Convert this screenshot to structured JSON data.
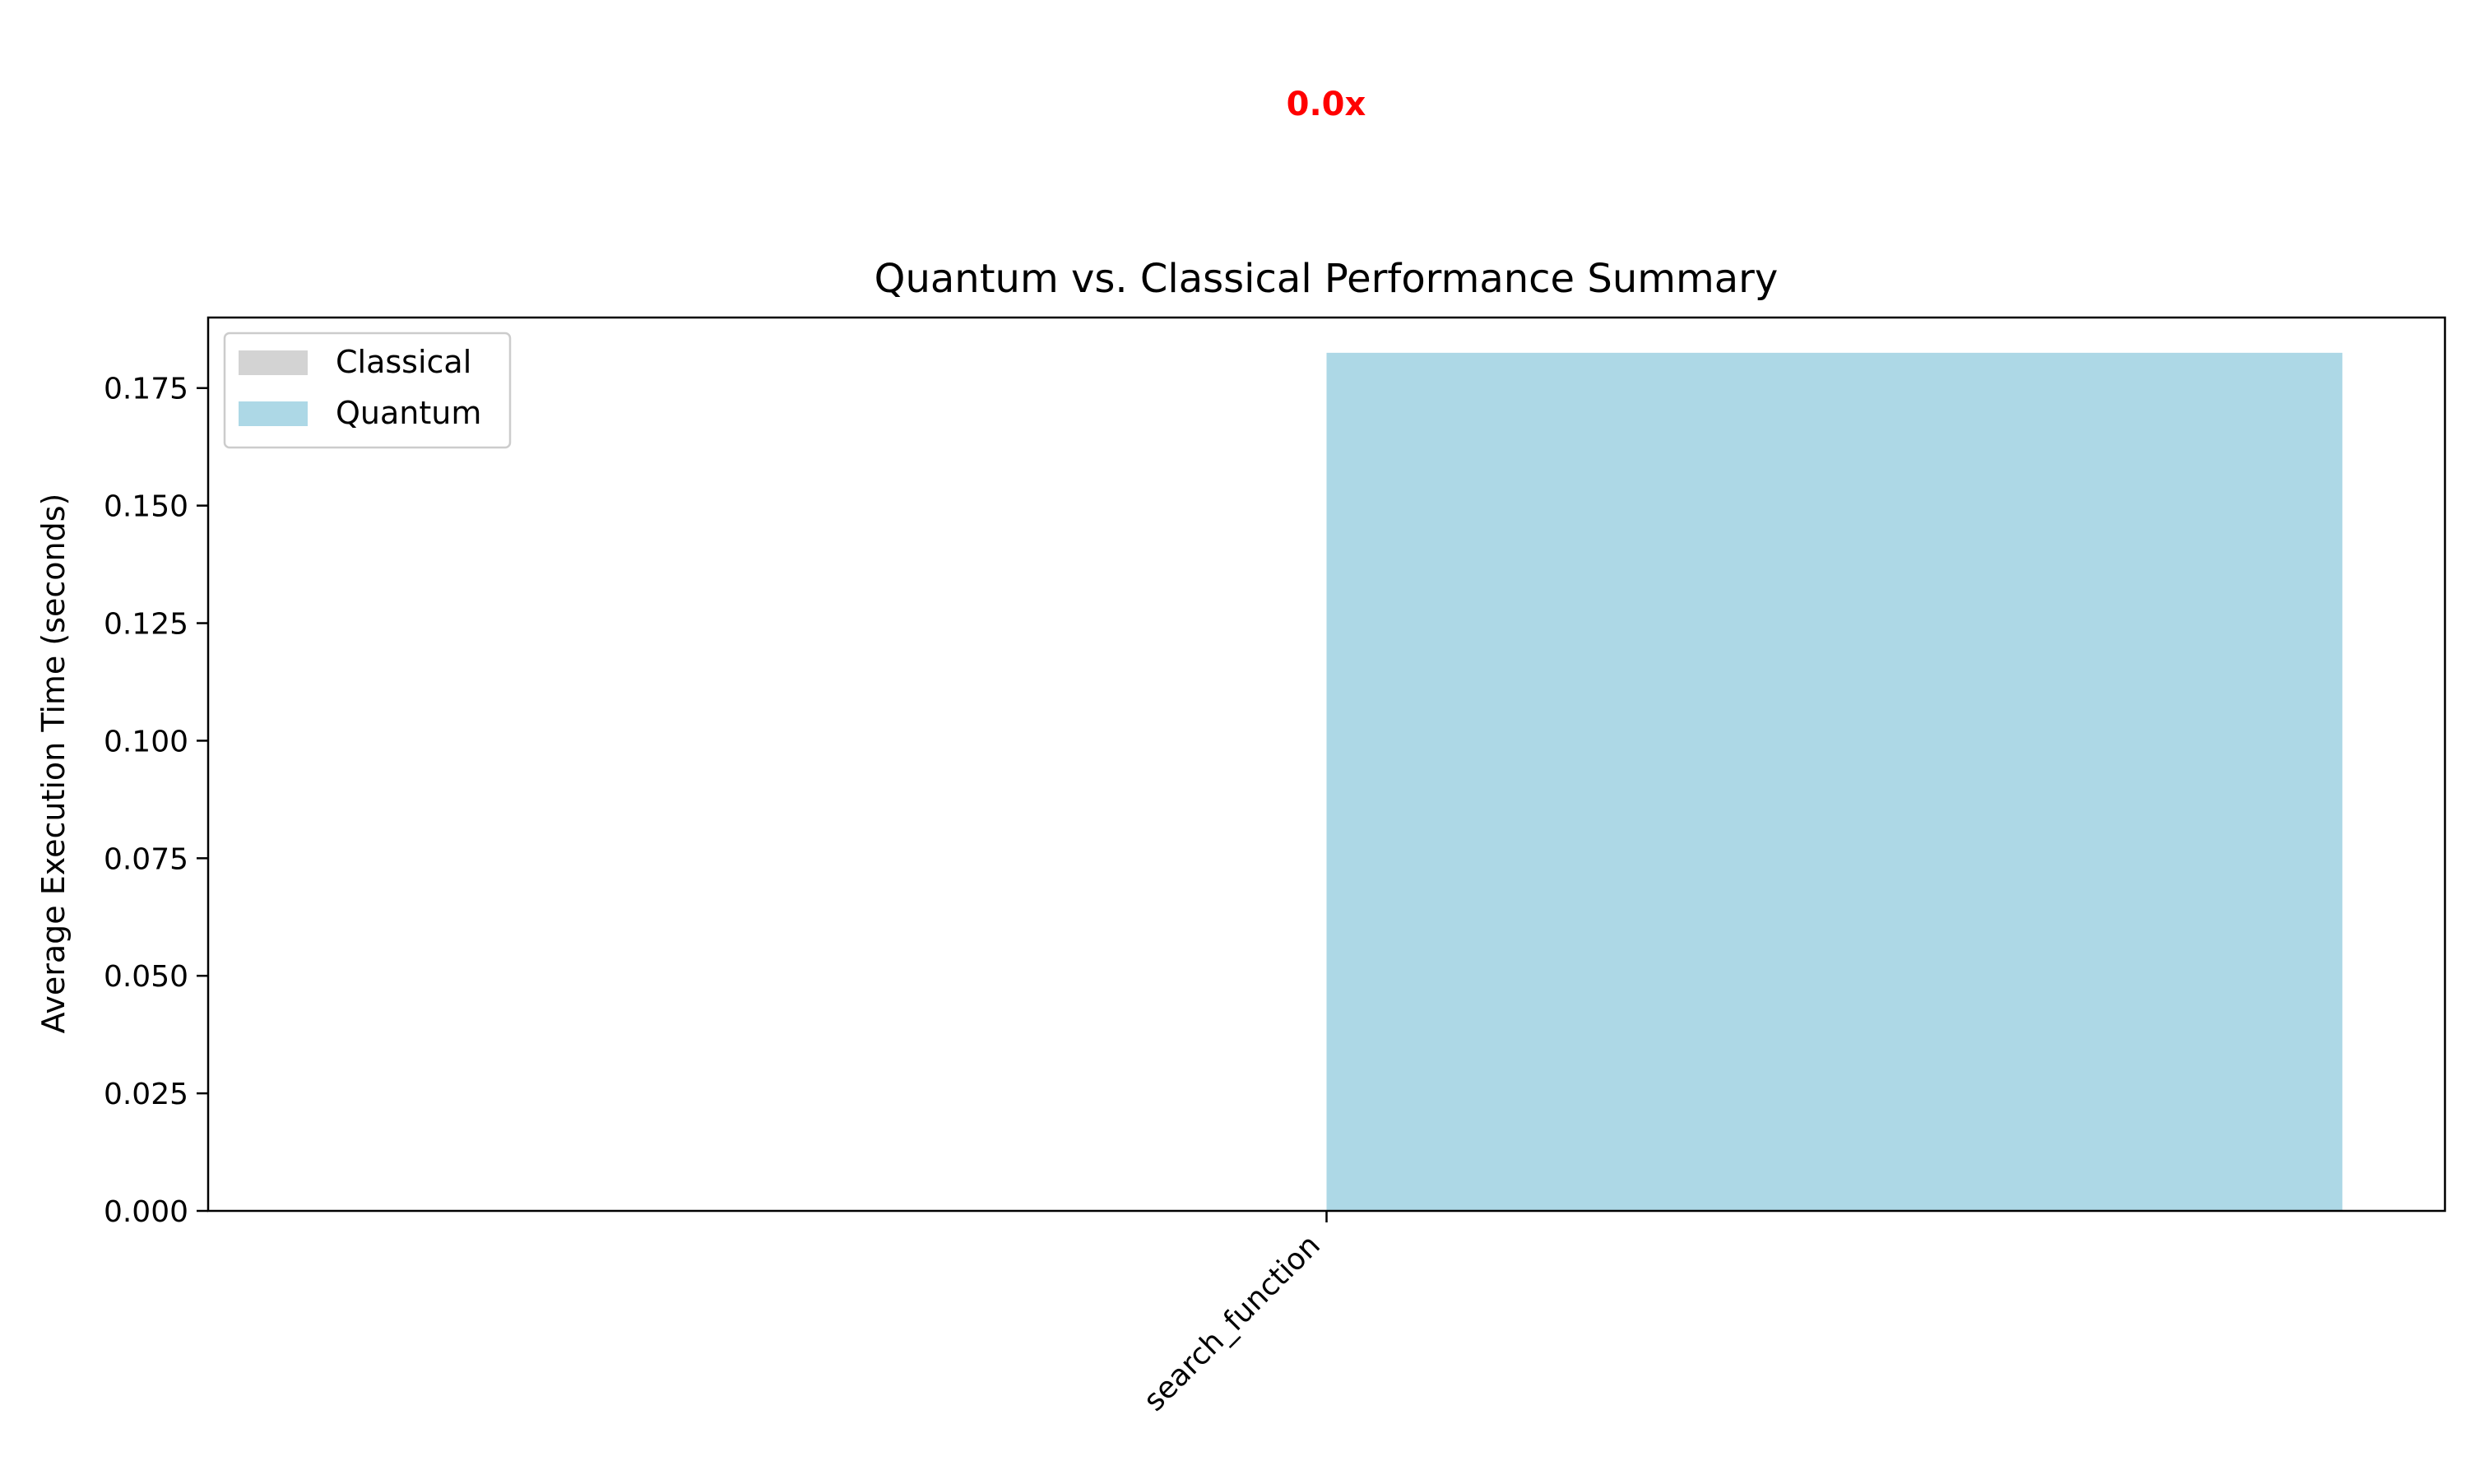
{
  "chart_data": {
    "type": "bar",
    "title": "Quantum vs. Classical Performance Summary",
    "xlabel": "",
    "ylabel": "Average Execution Time (seconds)",
    "categories": [
      "search_function"
    ],
    "series": [
      {
        "name": "Classical",
        "values": [
          0.0
        ],
        "color": "#d3d3d3"
      },
      {
        "name": "Quantum",
        "values": [
          0.1825
        ],
        "color": "#add8e6"
      }
    ],
    "ylim": [
      0,
      0.19
    ],
    "yticks": [
      "0.000",
      "0.025",
      "0.050",
      "0.075",
      "0.100",
      "0.125",
      "0.150",
      "0.175"
    ],
    "ytick_values": [
      0,
      0.025,
      0.05,
      0.075,
      0.1,
      0.125,
      0.15,
      0.175
    ],
    "annotations": [
      {
        "text": "0.0x",
        "color": "#ff0000",
        "bold": true
      }
    ],
    "legend_position": "top-left",
    "grid": false
  }
}
